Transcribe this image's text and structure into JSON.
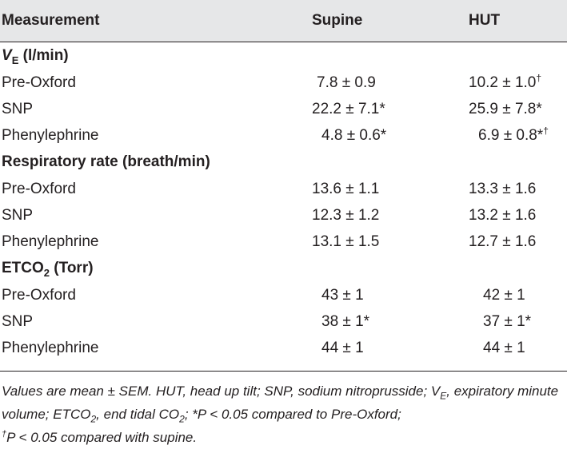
{
  "table": {
    "headers": {
      "measurement": "Measurement",
      "supine": "Supine",
      "hut": "HUT"
    },
    "sections": [
      {
        "title_main": "V",
        "title_sub": "E",
        "title_rest": " (l/min)",
        "rows": [
          {
            "label": "Pre-Oxford",
            "supine": "7.8 ± 0.9",
            "supine_mark": "",
            "hut": "10.2 ± 1.0",
            "hut_mark": "†"
          },
          {
            "label": "SNP",
            "supine": "22.2 ± 7.1*",
            "supine_mark": "",
            "hut": "25.9 ± 7.8*",
            "hut_mark": ""
          },
          {
            "label": "Phenylephrine",
            "supine": "4.8 ± 0.6*",
            "supine_mark": "",
            "hut": "6.9 ± 0.8*",
            "hut_mark": "†"
          }
        ]
      },
      {
        "title_main": "Respiratory rate (breath/min)",
        "title_sub": "",
        "title_rest": "",
        "rows": [
          {
            "label": "Pre-Oxford",
            "supine": "13.6 ± 1.1",
            "supine_mark": "",
            "hut": "13.3 ± 1.6",
            "hut_mark": ""
          },
          {
            "label": "SNP",
            "supine": "12.3 ± 1.2",
            "supine_mark": "",
            "hut": "13.2 ± 1.6",
            "hut_mark": ""
          },
          {
            "label": "Phenylephrine",
            "supine": "13.1 ± 1.5",
            "supine_mark": "",
            "hut": "12.7 ± 1.6",
            "hut_mark": ""
          }
        ]
      },
      {
        "title_main": "ETCO",
        "title_sub": "2",
        "title_rest": " (Torr)",
        "rows": [
          {
            "label": "Pre-Oxford",
            "supine": "43 ± 1",
            "supine_mark": "",
            "hut": "42 ± 1",
            "hut_mark": ""
          },
          {
            "label": "SNP",
            "supine": "38 ± 1*",
            "supine_mark": "",
            "hut": "37 ± 1*",
            "hut_mark": ""
          },
          {
            "label": "Phenylephrine",
            "supine": "44 ± 1",
            "supine_mark": "",
            "hut": "44 ± 1",
            "hut_mark": ""
          }
        ]
      }
    ]
  },
  "footnote": {
    "part1": "Values are mean ± SEM. HUT, head up tilt; SNP, sodium nitroprusside; V",
    "part1_sub": "E",
    "part2": ", expiratory minute volume; ETCO",
    "part2_sub": "2",
    "part3": ", end tidal CO",
    "part3_sub": "2",
    "part4": "; *P < 0.05 compared to Pre-Oxford;",
    "dagger": "†",
    "part5": "P < 0.05 compared with supine."
  }
}
